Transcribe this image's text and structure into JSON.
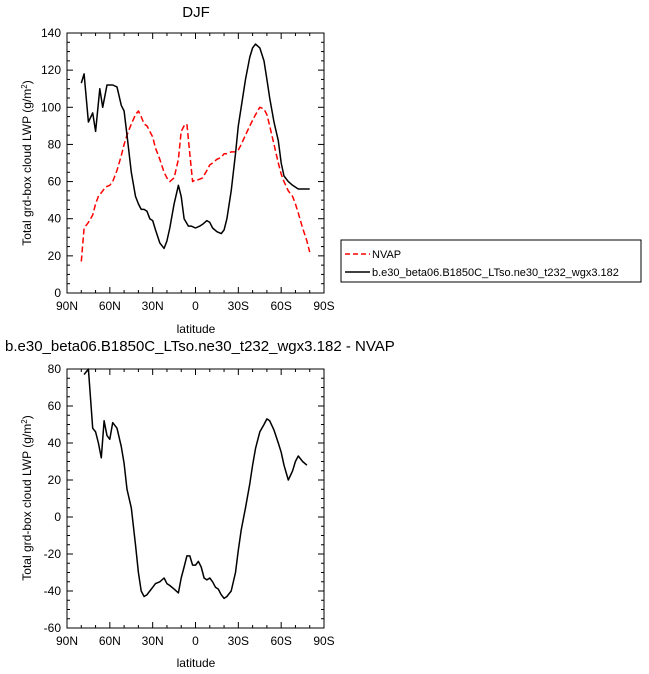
{
  "chart_data": [
    {
      "type": "line",
      "title": "DJF",
      "xlabel": "latitude",
      "ylabel": "Total grd-box cloud LWP (g/m",
      "ylabel_sup": "2",
      "ylabel_end": ")",
      "xlim": [
        -90,
        90
      ],
      "ylim": [
        0,
        140
      ],
      "xticks": [
        -90,
        -60,
        -30,
        0,
        30,
        60,
        90
      ],
      "xtick_labels": [
        "90N",
        "60N",
        "30N",
        "0",
        "30S",
        "60S",
        "90S"
      ],
      "yticks": [
        0,
        20,
        40,
        60,
        80,
        100,
        120,
        140
      ],
      "ytick_labels": [
        "0",
        "20",
        "40",
        "60",
        "80",
        "100",
        "120",
        "140"
      ],
      "legend": "right",
      "series": [
        {
          "name": "NVAP",
          "color": "#ff0000",
          "dash": true,
          "x": [
            -80,
            -78,
            -75,
            -72,
            -70,
            -68,
            -65,
            -63,
            -60,
            -58,
            -55,
            -52,
            -50,
            -48,
            -45,
            -42,
            -40,
            -38,
            -36,
            -34,
            -32,
            -30,
            -28,
            -25,
            -22,
            -20,
            -18,
            -15,
            -12,
            -10,
            -8,
            -6,
            -4,
            -2,
            0,
            2,
            5,
            8,
            10,
            12,
            15,
            18,
            20,
            22,
            25,
            28,
            30,
            32,
            35,
            38,
            40,
            42,
            45,
            48,
            50,
            52,
            55,
            58,
            60,
            62,
            65,
            68,
            70,
            72,
            75,
            78,
            80
          ],
          "y": [
            17,
            35,
            38,
            42,
            48,
            52,
            55,
            57,
            58,
            60,
            66,
            74,
            80,
            85,
            91,
            96,
            98,
            95,
            91,
            90,
            87,
            84,
            78,
            72,
            65,
            62,
            60,
            62,
            72,
            87,
            90,
            91,
            75,
            60,
            61,
            61,
            62,
            66,
            69,
            70,
            72,
            73,
            75,
            75,
            76,
            76,
            77,
            80,
            85,
            90,
            93,
            96,
            100,
            99,
            96,
            90,
            80,
            70,
            64,
            60,
            55,
            52,
            48,
            43,
            35,
            28,
            22
          ]
        },
        {
          "name": "b.e30_beta06.B1850C_LTso.ne30_t232_wgx3.182",
          "color": "#000000",
          "dash": false,
          "x": [
            -80,
            -78,
            -75,
            -72,
            -70,
            -67,
            -65,
            -62,
            -60,
            -58,
            -55,
            -52,
            -50,
            -48,
            -45,
            -42,
            -40,
            -38,
            -36,
            -34,
            -32,
            -30,
            -28,
            -25,
            -22,
            -20,
            -18,
            -15,
            -12,
            -10,
            -8,
            -5,
            -3,
            0,
            3,
            5,
            8,
            10,
            12,
            15,
            18,
            20,
            22,
            25,
            28,
            30,
            32,
            35,
            38,
            40,
            42,
            45,
            48,
            50,
            52,
            55,
            58,
            60,
            62,
            65,
            68,
            70,
            72,
            75,
            78,
            80
          ],
          "y": [
            113,
            118,
            92,
            97,
            87,
            110,
            100,
            112,
            112,
            112,
            111,
            101,
            98,
            85,
            65,
            52,
            48,
            45,
            45,
            44,
            40,
            39,
            34,
            27,
            24,
            28,
            35,
            48,
            58,
            52,
            40,
            36,
            36,
            35,
            36,
            37,
            39,
            38,
            35,
            33,
            32,
            34,
            40,
            55,
            75,
            90,
            100,
            115,
            127,
            132,
            134,
            132,
            125,
            115,
            105,
            92,
            82,
            70,
            63,
            60,
            58,
            57,
            56,
            56,
            56,
            56
          ]
        }
      ]
    },
    {
      "type": "line",
      "title": "b.e30_beta06.B1850C_LTso.ne30_t232_wgx3.182 - NVAP",
      "xlabel": "latitude",
      "ylabel": "Total grd-box cloud LWP (g/m",
      "ylabel_sup": "2",
      "ylabel_end": ")",
      "xlim": [
        -90,
        90
      ],
      "ylim": [
        -60,
        80
      ],
      "xticks": [
        -90,
        -60,
        -30,
        0,
        30,
        60,
        90
      ],
      "xtick_labels": [
        "90N",
        "60N",
        "30N",
        "0",
        "30S",
        "60S",
        "90S"
      ],
      "yticks": [
        -60,
        -40,
        -20,
        0,
        20,
        40,
        60,
        80
      ],
      "ytick_labels": [
        "-60",
        "-40",
        "-20",
        "0",
        "20",
        "40",
        "60",
        "80"
      ],
      "series": [
        {
          "color": "#000000",
          "dash": false,
          "x": [
            -78,
            -75,
            -72,
            -70,
            -68,
            -66,
            -64,
            -62,
            -60,
            -58,
            -55,
            -52,
            -50,
            -48,
            -45,
            -42,
            -40,
            -38,
            -36,
            -34,
            -32,
            -30,
            -28,
            -25,
            -22,
            -20,
            -18,
            -15,
            -12,
            -10,
            -8,
            -6,
            -4,
            -2,
            0,
            2,
            4,
            6,
            8,
            10,
            12,
            14,
            16,
            18,
            20,
            22,
            25,
            28,
            30,
            32,
            35,
            38,
            40,
            42,
            45,
            48,
            50,
            52,
            55,
            58,
            60,
            62,
            65,
            68,
            70,
            72,
            75,
            78
          ],
          "y": [
            77,
            80,
            48,
            46,
            40,
            32,
            52,
            44,
            42,
            51,
            48,
            38,
            29,
            15,
            5,
            -15,
            -30,
            -40,
            -43,
            -42,
            -40,
            -38,
            -36,
            -35,
            -33,
            -36,
            -37,
            -39,
            -41,
            -33,
            -27,
            -21,
            -21,
            -26,
            -26,
            -24,
            -27,
            -33,
            -34,
            -33,
            -35,
            -38,
            -39,
            -42,
            -44,
            -43,
            -40,
            -30,
            -18,
            -7,
            5,
            18,
            28,
            37,
            46,
            50,
            53,
            52,
            47,
            40,
            35,
            28,
            20,
            25,
            30,
            33,
            30,
            28
          ]
        }
      ]
    }
  ]
}
